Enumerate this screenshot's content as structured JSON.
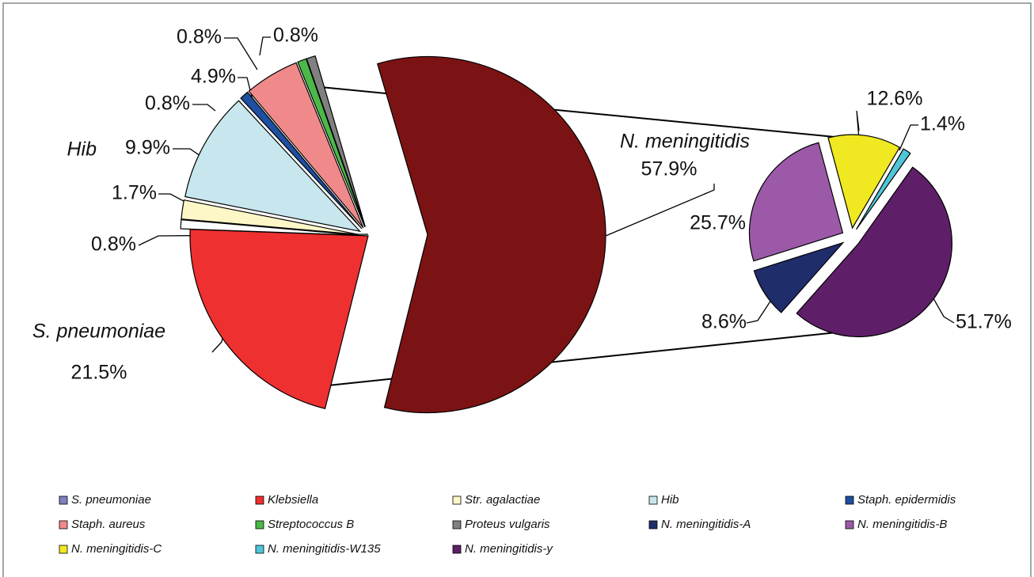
{
  "chart_data": {
    "type": "pie-of-pie",
    "categories": [
      "S. pneumoniae",
      "Klebsiella",
      "Str. agalactiae",
      "Hib",
      "Staph. epidermidis",
      "Staph. aureus",
      "Streptococcus B",
      "Proteus vulgaris",
      "N. meningitidis"
    ],
    "values": [
      21.5,
      0.8,
      1.7,
      9.9,
      0.8,
      4.9,
      0.8,
      0.8,
      57.9
    ],
    "value_labels": [
      "21.5%",
      "0.8%",
      "1.7%",
      "9.9%",
      "0.8%",
      "4.9%",
      "0.8%",
      "0.8%",
      "57.9%"
    ],
    "colors": [
      "#ee3030",
      "#ffffff",
      "#fdf7c7",
      "#c7e6ee",
      "#1f4fa0",
      "#f08a8a",
      "#4cb848",
      "#808080",
      "#7b1314"
    ],
    "sub_categories": [
      "N. meningitidis-A",
      "N. meningitidis-B",
      "N. meningitidis-C",
      "N. meningitidis-W135",
      "N. meningitidis-y"
    ],
    "sub_values": [
      8.6,
      25.7,
      12.6,
      1.4,
      51.7
    ],
    "sub_value_labels": [
      "8.6%",
      "25.7%",
      "12.6%",
      "1.4%",
      "51.7%"
    ],
    "sub_colors": [
      "#1f2d6b",
      "#9b59a8",
      "#f0e820",
      "#4fc6d8",
      "#5e1f68"
    ],
    "legend_colors": [
      "#8080c0",
      "#ee3030",
      "#fdf7c7",
      "#c7e6ee",
      "#1f4fa0",
      "#f08a8a",
      "#4cb848",
      "#808080",
      "#1f2d6b",
      "#9b59a8",
      "#f0e820",
      "#4fc6d8",
      "#5e1f68"
    ]
  }
}
